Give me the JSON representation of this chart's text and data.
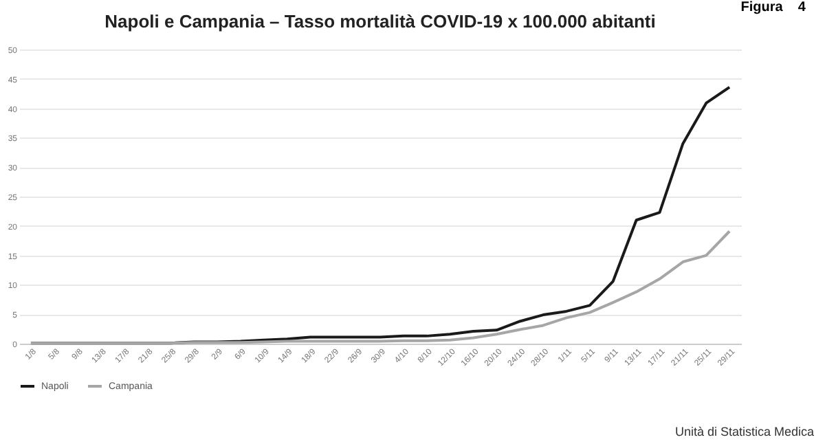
{
  "chart_data": {
    "type": "line",
    "title": "Napoli e Campania – Tasso mortalità COVID-19 x 100.000 abitanti",
    "categories": [
      "1/8",
      "5/8",
      "9/8",
      "13/8",
      "17/8",
      "21/8",
      "25/8",
      "29/8",
      "2/9",
      "6/9",
      "10/9",
      "14/9",
      "18/9",
      "22/9",
      "26/9",
      "30/9",
      "4/10",
      "8/10",
      "12/10",
      "16/10",
      "20/10",
      "24/10",
      "28/10",
      "1/11",
      "5/11",
      "9/11",
      "13/11",
      "17/11",
      "21/11",
      "25/11",
      "29/11"
    ],
    "series": [
      {
        "name": "Napoli",
        "color": "#1a1a1a",
        "values": [
          0.1,
          0.1,
          0.1,
          0.1,
          0.1,
          0.1,
          0.1,
          0.3,
          0.3,
          0.4,
          0.6,
          0.8,
          1.1,
          1.1,
          1.1,
          1.1,
          1.3,
          1.3,
          1.6,
          2.1,
          2.3,
          3.8,
          4.9,
          5.5,
          6.5,
          10.6,
          21,
          22.3,
          34,
          40.9,
          43.6
        ]
      },
      {
        "name": "Campania",
        "color": "#a6a6a6",
        "values": [
          0.1,
          0.1,
          0.1,
          0.1,
          0.1,
          0.1,
          0.1,
          0.2,
          0.2,
          0.2,
          0.3,
          0.4,
          0.4,
          0.4,
          0.4,
          0.4,
          0.5,
          0.5,
          0.6,
          1.0,
          1.6,
          2.4,
          3.1,
          4.4,
          5.3,
          7,
          8.8,
          11,
          13.9,
          15,
          19.1
        ]
      }
    ],
    "ylim": [
      0,
      50
    ],
    "yticks": [
      0,
      5,
      10,
      15,
      20,
      25,
      30,
      35,
      40,
      45,
      50
    ],
    "grid": "y",
    "legend": "bottom",
    "line_style": "solid",
    "marker": "none",
    "annotations": [
      "Figura    4",
      "Unità di Statistica Medica"
    ]
  }
}
